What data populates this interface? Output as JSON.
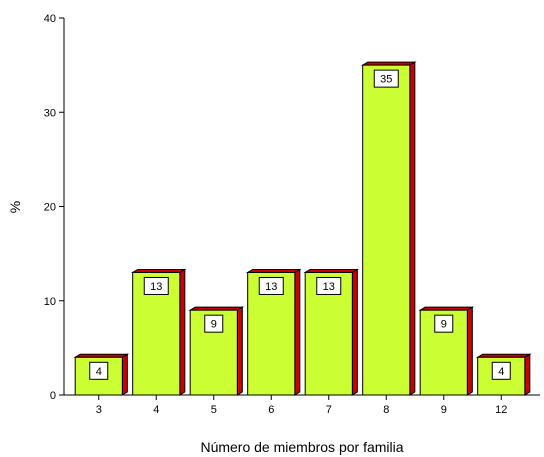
{
  "chart_data": {
    "type": "bar",
    "categories": [
      "3",
      "4",
      "5",
      "6",
      "7",
      "8",
      "9",
      "12"
    ],
    "values": [
      4,
      13,
      9,
      13,
      13,
      35,
      9,
      4
    ],
    "data_labels": [
      "4",
      "13",
      "9",
      "13",
      "13",
      "35",
      "9",
      "4"
    ],
    "xlabel": "Número de miembros por familia",
    "ylabel": "%",
    "ylim": [
      0,
      40
    ],
    "yticks": [
      0,
      10,
      20,
      30,
      40
    ],
    "ytick_labels": [
      "0",
      "10",
      "20",
      "30",
      "40"
    ],
    "grid": false,
    "legend": "none",
    "colors": {
      "bar_face": "#ccff33",
      "bar_side": "#cc0000",
      "outline": "#000000",
      "label_box": "#ffffff"
    }
  }
}
